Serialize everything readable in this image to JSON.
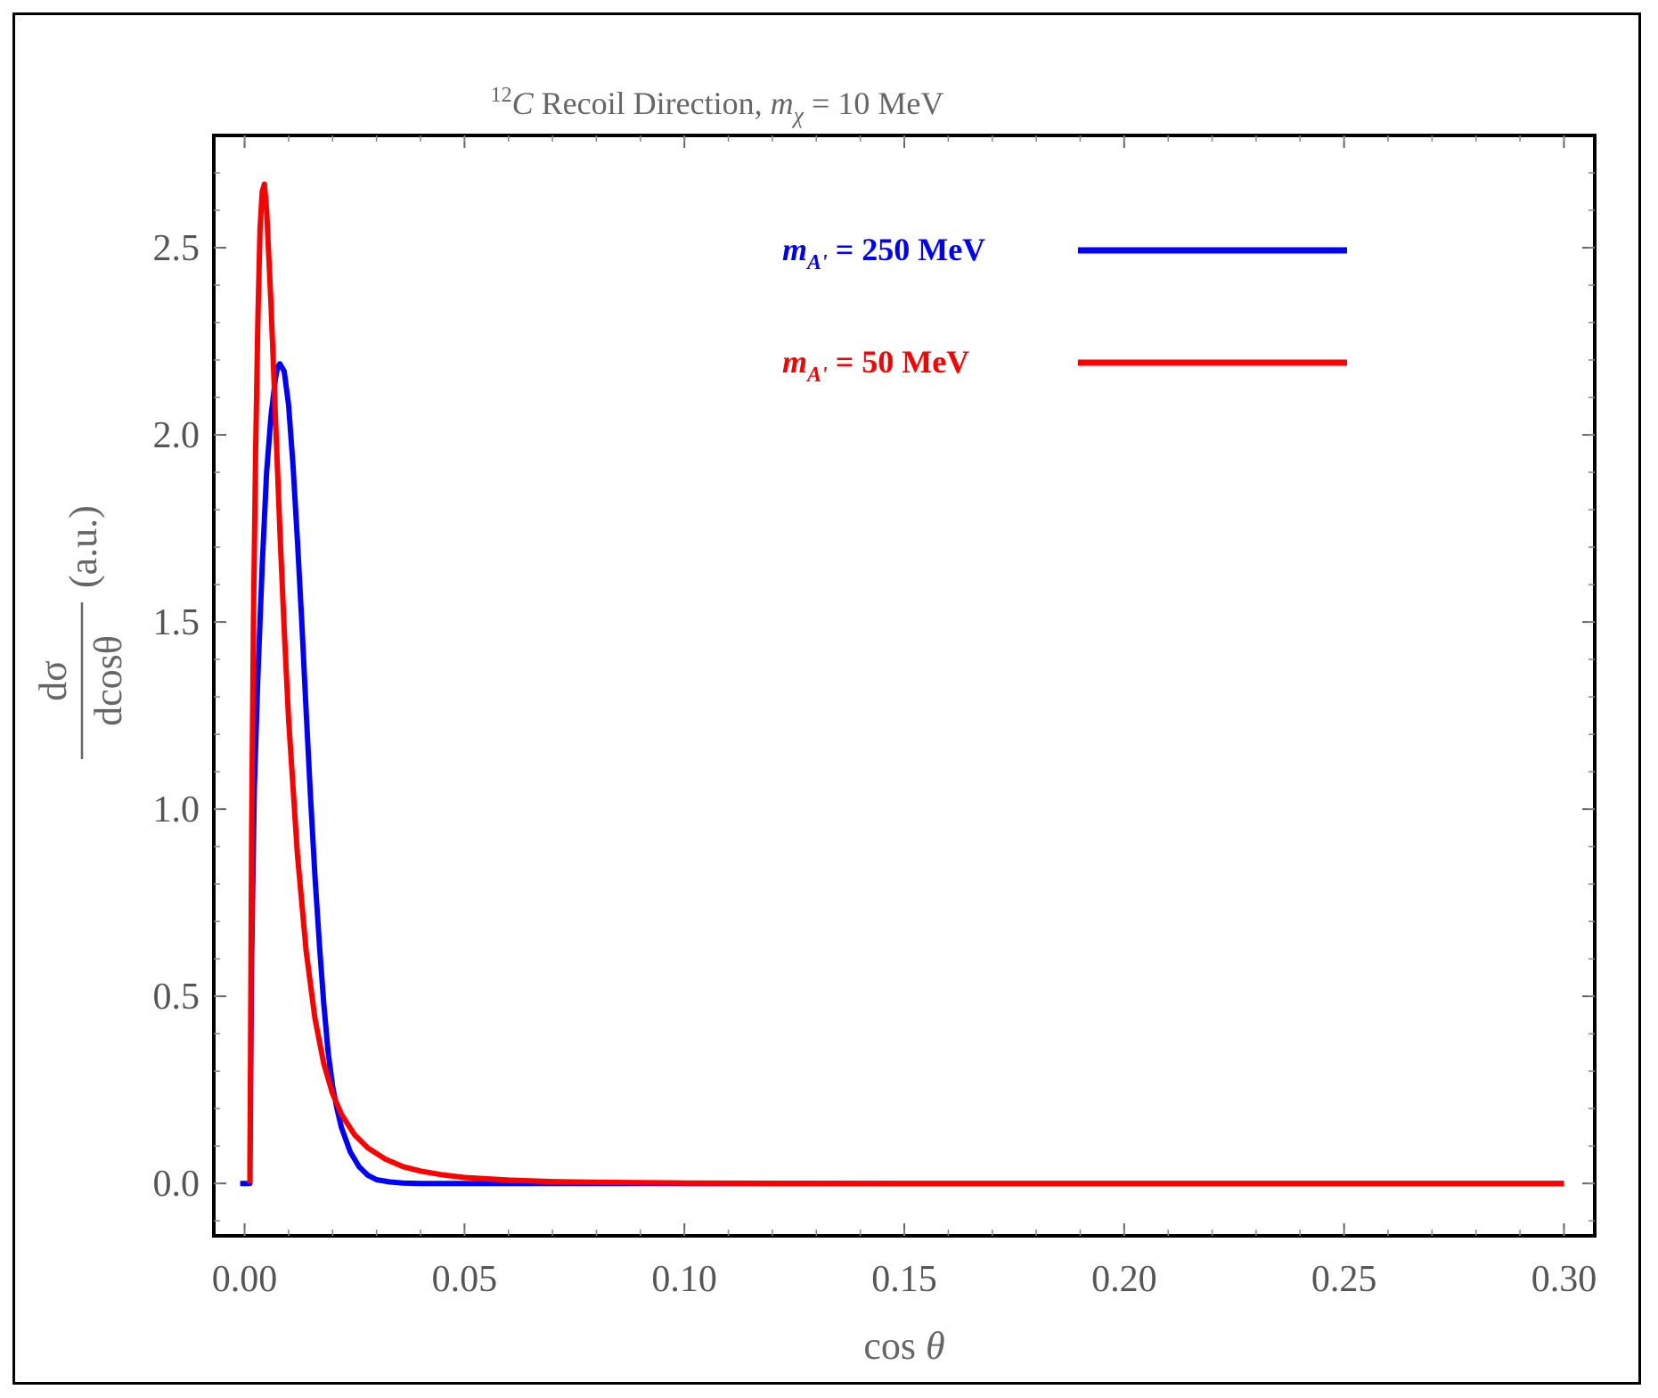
{
  "chart_data": {
    "type": "line",
    "title": {
      "prefix_sup": "12",
      "prefix_main": "C",
      "text": " Recoil Direction, ",
      "var_main": "m",
      "var_sub": "χ",
      "suffix": " = 10 MeV"
    },
    "xlabel": {
      "main": "cos ",
      "var": "θ"
    },
    "ylabel": {
      "num": "dσ",
      "den": "dcosθ",
      "unit": "(a.u.)"
    },
    "xlim": [
      -0.007,
      0.307
    ],
    "ylim": [
      -0.14,
      2.8
    ],
    "x_ticks": [
      0.0,
      0.05,
      0.1,
      0.15,
      0.2,
      0.25,
      0.3
    ],
    "x_tick_labels": [
      "0.00",
      "0.05",
      "0.10",
      "0.15",
      "0.20",
      "0.25",
      "0.30"
    ],
    "y_ticks": [
      0.0,
      0.5,
      1.0,
      1.5,
      2.0,
      2.5
    ],
    "y_tick_labels": [
      "0.0",
      "0.5",
      "1.0",
      "1.5",
      "2.0",
      "2.5"
    ],
    "grid": false,
    "legend_position": "top-right",
    "series": [
      {
        "legend_main": "m",
        "legend_sub": "A'",
        "legend_value": " = 250 MeV",
        "color": "#0000ff",
        "points": [
          [
            -0.001,
            0.0
          ],
          [
            0.001,
            0.0
          ],
          [
            0.0012,
            0.0
          ],
          [
            0.0016,
            0.6
          ],
          [
            0.0022,
            1.05
          ],
          [
            0.003,
            1.35
          ],
          [
            0.004,
            1.65
          ],
          [
            0.005,
            1.9
          ],
          [
            0.006,
            2.05
          ],
          [
            0.007,
            2.15
          ],
          [
            0.0075,
            2.18
          ],
          [
            0.008,
            2.19
          ],
          [
            0.009,
            2.17
          ],
          [
            0.01,
            2.08
          ],
          [
            0.011,
            1.92
          ],
          [
            0.012,
            1.72
          ],
          [
            0.013,
            1.5
          ],
          [
            0.014,
            1.26
          ],
          [
            0.015,
            1.03
          ],
          [
            0.016,
            0.82
          ],
          [
            0.017,
            0.64
          ],
          [
            0.018,
            0.48
          ],
          [
            0.019,
            0.35
          ],
          [
            0.02,
            0.26
          ],
          [
            0.021,
            0.2
          ],
          [
            0.022,
            0.15
          ],
          [
            0.024,
            0.085
          ],
          [
            0.026,
            0.045
          ],
          [
            0.028,
            0.022
          ],
          [
            0.03,
            0.01
          ],
          [
            0.033,
            0.004
          ],
          [
            0.036,
            0.001
          ],
          [
            0.04,
            0.0
          ],
          [
            0.1,
            0.0
          ],
          [
            0.2,
            0.0
          ],
          [
            0.3,
            0.0
          ]
        ]
      },
      {
        "legend_main": "m",
        "legend_sub": "A'",
        "legend_value": " = 50 MeV",
        "color": "#ff0000",
        "points": [
          [
            0.0012,
            0.0
          ],
          [
            0.0016,
            0.95
          ],
          [
            0.002,
            1.5
          ],
          [
            0.0025,
            1.95
          ],
          [
            0.003,
            2.3
          ],
          [
            0.0035,
            2.55
          ],
          [
            0.004,
            2.65
          ],
          [
            0.0045,
            2.67
          ],
          [
            0.005,
            2.6
          ],
          [
            0.006,
            2.35
          ],
          [
            0.007,
            2.05
          ],
          [
            0.008,
            1.75
          ],
          [
            0.009,
            1.48
          ],
          [
            0.01,
            1.24
          ],
          [
            0.012,
            0.88
          ],
          [
            0.014,
            0.62
          ],
          [
            0.016,
            0.44
          ],
          [
            0.018,
            0.32
          ],
          [
            0.02,
            0.24
          ],
          [
            0.022,
            0.185
          ],
          [
            0.025,
            0.13
          ],
          [
            0.028,
            0.095
          ],
          [
            0.032,
            0.065
          ],
          [
            0.036,
            0.045
          ],
          [
            0.04,
            0.033
          ],
          [
            0.045,
            0.023
          ],
          [
            0.05,
            0.016
          ],
          [
            0.06,
            0.009
          ],
          [
            0.07,
            0.005
          ],
          [
            0.08,
            0.003
          ],
          [
            0.1,
            0.0012
          ],
          [
            0.12,
            0.0005
          ],
          [
            0.15,
            0.0
          ],
          [
            0.2,
            0.0
          ],
          [
            0.25,
            0.0
          ],
          [
            0.3,
            0.0
          ]
        ]
      }
    ]
  }
}
